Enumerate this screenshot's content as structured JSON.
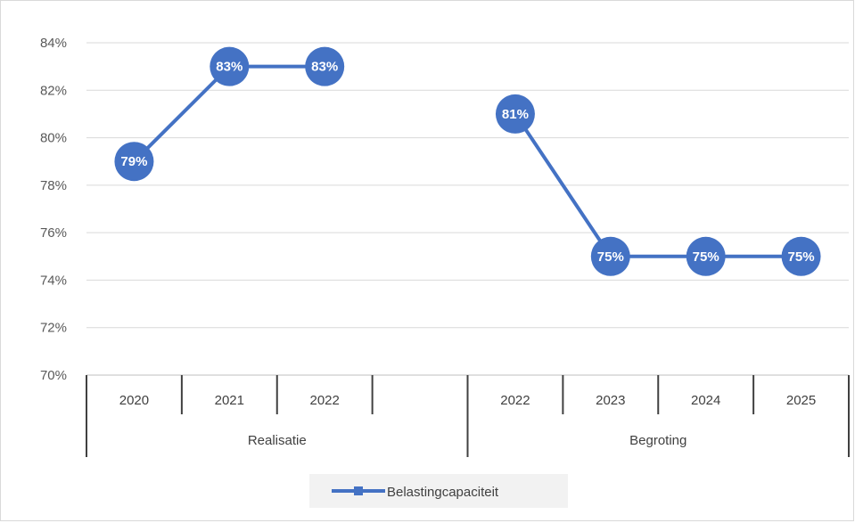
{
  "chart_data": {
    "type": "line",
    "series": [
      {
        "name": "Belastingcapaciteit",
        "color": "#4472c4",
        "values": [
          79,
          83,
          83,
          null,
          81,
          75,
          75,
          75
        ],
        "labels": [
          "79%",
          "83%",
          "83%",
          "",
          "81%",
          "75%",
          "75%",
          "75%"
        ]
      }
    ],
    "categories": [
      "2020",
      "2021",
      "2022",
      "",
      "2022",
      "2023",
      "2024",
      "2025"
    ],
    "groups": [
      {
        "label": "Realisatie",
        "span": [
          0,
          3
        ]
      },
      {
        "label": "Begroting",
        "span": [
          4,
          7
        ]
      }
    ],
    "ylim": [
      70,
      84
    ],
    "yticks": [
      "70%",
      "72%",
      "74%",
      "76%",
      "78%",
      "80%",
      "82%",
      "84%"
    ],
    "yunit": "%",
    "grid": true,
    "legend": "bottom"
  }
}
